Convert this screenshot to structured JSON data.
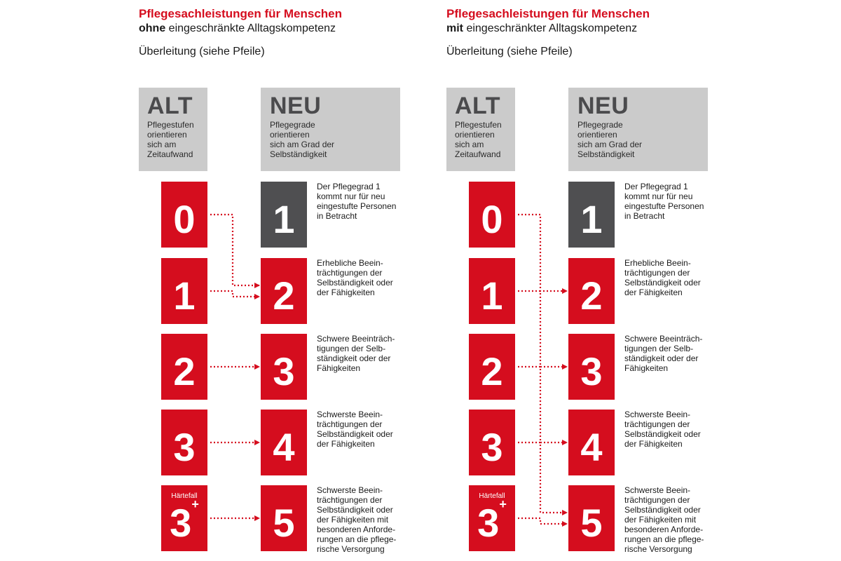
{
  "panels": [
    {
      "title": "Pflegesachleistungen für Menschen",
      "subtitle_bold": "ohne",
      "subtitle_rest": " eingeschränkte Alltagskompetenz",
      "caption": "Überleitung (siehe Pfeile)",
      "alt_header": {
        "label": "ALT",
        "description": "Pflegestufen\norientieren\nsich am\nZeitaufwand"
      },
      "neu_header": {
        "label": "NEU",
        "description": "Pflegegrade\norientieren\nsich am Grad der\nSelbständigkeit"
      },
      "old_levels": [
        {
          "num": "0"
        },
        {
          "num": "1"
        },
        {
          "num": "2"
        },
        {
          "num": "3"
        },
        {
          "tag": "Härtefall",
          "num": "3",
          "sup": "+"
        }
      ],
      "new_levels": [
        {
          "num": "1",
          "desc": "Der Pflegegrad 1\nkommt nur für neu\neingestufte Personen\nin Betracht"
        },
        {
          "num": "2",
          "desc": "Erhebliche Beein-\nträchtigungen der\nSelbständigkeit oder\nder Fähigkeiten"
        },
        {
          "num": "3",
          "desc": "Schwere Beeinträch-\ntigungen der Selb-\nständigkeit oder der\nFähigkeiten"
        },
        {
          "num": "4",
          "desc": "Schwerste Beein-\nträchtigungen der\nSelbständigkeit oder\nder Fähigkeiten"
        },
        {
          "num": "5",
          "desc": "Schwerste Beein-\nträchtigungen der\nSelbständigkeit oder\nder Fähigkeiten mit\nbesonderen Anforde-\nrungen an die pflege-\nrische Versorgung"
        }
      ],
      "mappings": [
        {
          "from_old": 0,
          "to_new": 1
        },
        {
          "from_old": 1,
          "to_new": 1
        },
        {
          "from_old": 2,
          "to_new": 2
        },
        {
          "from_old": 3,
          "to_new": 3
        },
        {
          "from_old": 4,
          "to_new": 4
        }
      ]
    },
    {
      "title": "Pflegesachleistungen für Menschen",
      "subtitle_bold": "mit",
      "subtitle_rest": " eingeschränkter Alltagskompetenz",
      "caption": "Überleitung (siehe Pfeile)",
      "alt_header": {
        "label": "ALT",
        "description": "Pflegestufen\norientieren\nsich am\nZeitaufwand"
      },
      "neu_header": {
        "label": "NEU",
        "description": "Pflegegrade\norientieren\nsich am Grad der\nSelbständigkeit"
      },
      "old_levels": [
        {
          "num": "0"
        },
        {
          "num": "1"
        },
        {
          "num": "2"
        },
        {
          "num": "3"
        },
        {
          "tag": "Härtefall",
          "num": "3",
          "sup": "+"
        }
      ],
      "new_levels": [
        {
          "num": "1",
          "desc": "Der Pflegegrad 1\nkommt nur für neu\neingestufte Personen\nin Betracht"
        },
        {
          "num": "2",
          "desc": "Erhebliche Beein-\nträchtigungen der\nSelbständigkeit oder\nder Fähigkeiten"
        },
        {
          "num": "3",
          "desc": "Schwere Beeinträch-\ntigungen der Selb-\nständigkeit oder der\nFähigkeiten"
        },
        {
          "num": "4",
          "desc": "Schwerste Beein-\nträchtigungen der\nSelbständigkeit oder\nder Fähigkeiten"
        },
        {
          "num": "5",
          "desc": "Schwerste Beein-\nträchtigungen der\nSelbständigkeit oder\nder Fähigkeiten mit\nbesonderen Anforde-\nrungen an die pflege-\nrische Versorgung"
        }
      ],
      "mappings": [
        {
          "from_old": 0,
          "to_new": 1
        },
        {
          "from_old": 1,
          "to_new": 2
        },
        {
          "from_old": 2,
          "to_new": 3
        },
        {
          "from_old": 3,
          "to_new": 4
        },
        {
          "from_old": 4,
          "to_new": 4
        }
      ]
    }
  ],
  "colors": {
    "red": "#d50d1e",
    "dark_gray": "#4f4f51",
    "light_gray": "#cbcbcb",
    "header_text": "#4b4b4d"
  }
}
